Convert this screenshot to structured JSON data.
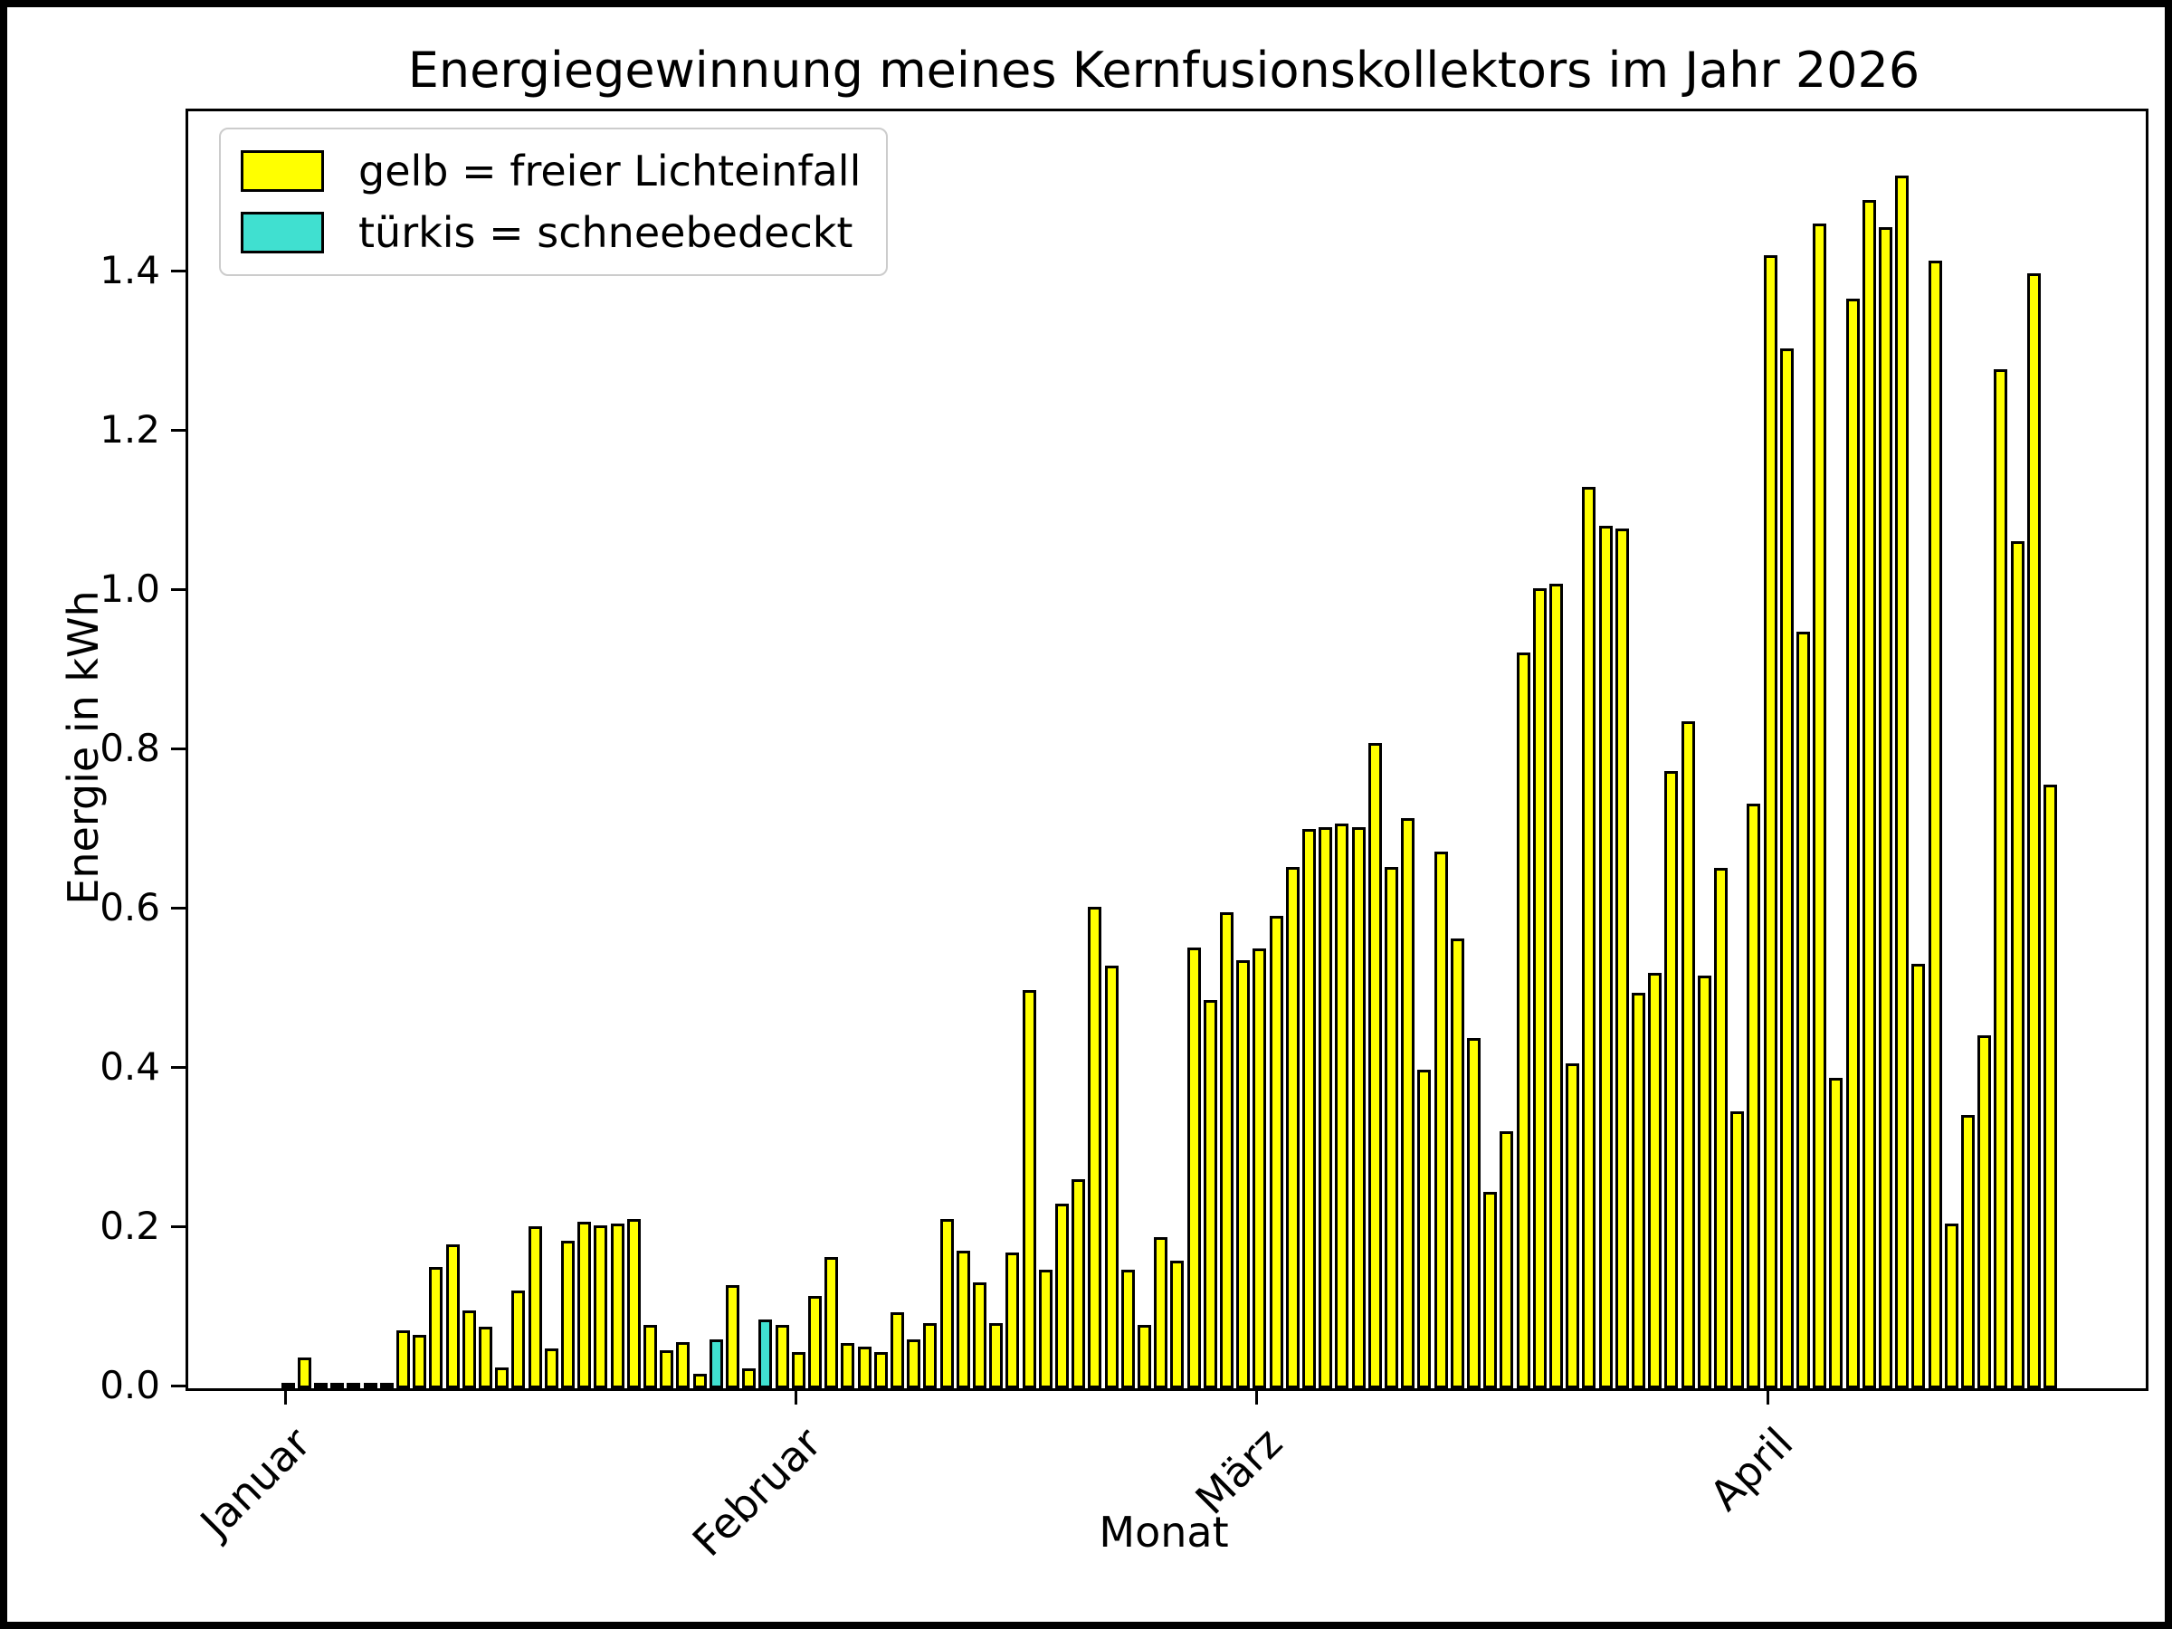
{
  "figure": {
    "background": "#ffffff",
    "frame_color": "#000000"
  },
  "chart_data": {
    "type": "bar",
    "title": "Energiegewinnung meines Kernfusionskollektors im Jahr 2026",
    "xlabel": "Monat",
    "ylabel": "Energie in kWh",
    "ylim": [
      0,
      1.6
    ],
    "grid": false,
    "legend_position": "upper-left",
    "legend": [
      {
        "label": "gelb = freier Lichteinfall",
        "color": "#ffff00"
      },
      {
        "label": "türkis = schneebedeckt",
        "color": "#40e0d0"
      }
    ],
    "colors": {
      "bar": "#ffff00",
      "snow": "#40e0d0",
      "edge": "#000000"
    },
    "y_ticks": [
      "0.0",
      "0.2",
      "0.4",
      "0.6",
      "0.8",
      "1.0",
      "1.2",
      "1.4"
    ],
    "x_ticks": [
      {
        "label": "Januar",
        "day": 1
      },
      {
        "label": "Februar",
        "day": 32
      },
      {
        "label": "März",
        "day": 60
      },
      {
        "label": "April",
        "day": 91
      }
    ],
    "unit": "kWh",
    "days_start": "Januar 1",
    "snow_days": [
      27,
      30
    ],
    "values": [
      0.004,
      0.039,
      0.003,
      0.005,
      0.005,
      0.004,
      0.006,
      0.073,
      0.067,
      0.152,
      0.181,
      0.098,
      0.077,
      0.026,
      0.123,
      0.203,
      0.05,
      0.185,
      0.209,
      0.204,
      0.207,
      0.212,
      0.08,
      0.048,
      0.058,
      0.018,
      0.061,
      0.13,
      0.025,
      0.086,
      0.08,
      0.046,
      0.116,
      0.165,
      0.057,
      0.052,
      0.045,
      0.096,
      0.061,
      0.082,
      0.213,
      0.173,
      0.133,
      0.082,
      0.17,
      0.5,
      0.149,
      0.232,
      0.262,
      0.604,
      0.531,
      0.149,
      0.08,
      0.19,
      0.16,
      0.553,
      0.487,
      0.598,
      0.537,
      0.552,
      0.593,
      0.655,
      0.702,
      0.705,
      0.709,
      0.705,
      0.81,
      0.654,
      0.716,
      0.4,
      0.674,
      0.565,
      0.44,
      0.247,
      0.323,
      0.924,
      1.005,
      1.01,
      0.408,
      1.132,
      1.083,
      1.08,
      0.497,
      0.522,
      0.775,
      0.838,
      0.518,
      0.653,
      0.348,
      0.734,
      1.423,
      1.306,
      0.95,
      1.462,
      0.39,
      1.368,
      1.492,
      1.458,
      1.523,
      0.533,
      1.416,
      0.207,
      0.343,
      0.443,
      1.28,
      1.064,
      1.4,
      0.758
    ]
  }
}
